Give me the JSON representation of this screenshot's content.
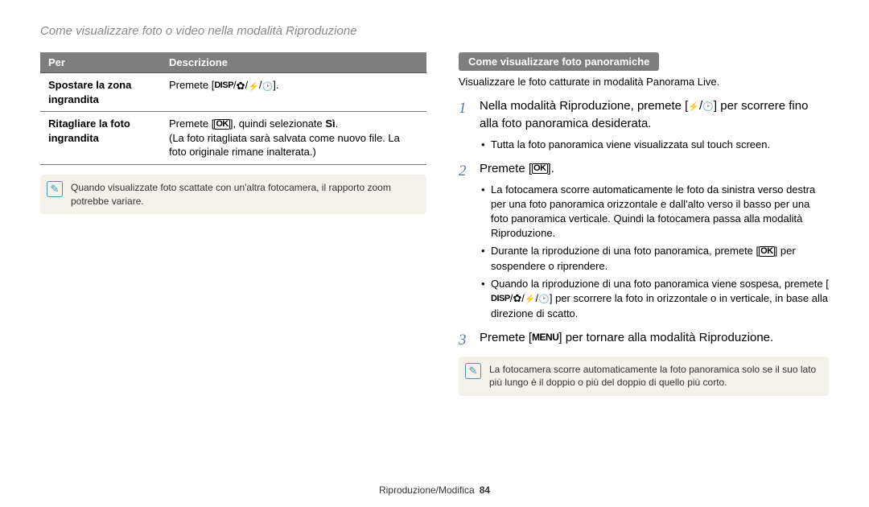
{
  "pageTitle": "Come visualizzare foto o video nella modalità Riproduzione",
  "table": {
    "headers": [
      "Per",
      "Descrizione"
    ],
    "rows": [
      {
        "label": "Spostare la zona ingrandita",
        "desc_pre": "Premete [",
        "desc_post": "]."
      },
      {
        "label": "Ritagliare la foto ingrandita",
        "desc_pre": "Premete [",
        "desc_mid": "], quindi selezionate ",
        "desc_bold": "Sì",
        "desc_note": "(La foto ritagliata sarà salvata come nuovo file. La foto originale rimane inalterata.)"
      }
    ]
  },
  "leftNote": "Quando visualizzate foto scattate con un'altra fotocamera, il rapporto zoom potrebbe variare.",
  "right": {
    "head": "Come visualizzare foto panoramiche",
    "intro": "Visualizzare le foto catturate in modalità Panorama Live.",
    "step1_a": "Nella modalità Riproduzione, premete [",
    "step1_b": "] per scorrere fino alla foto panoramica desiderata.",
    "step1_sub1": "Tutta la foto panoramica viene visualizzata sul touch screen.",
    "step2_a": "Premete [",
    "step2_b": "].",
    "step2_sub1": "La fotocamera scorre automaticamente le foto da sinistra verso destra per una foto panoramica orizzontale e dall'alto verso il basso per una foto panoramica verticale. Quindi la fotocamera passa alla modalità Riproduzione.",
    "step2_sub2_a": "Durante la riproduzione di una foto panoramica, premete [",
    "step2_sub2_b": "] per sospendere o riprendere.",
    "step2_sub3_a": "Quando la riproduzione di una foto panoramica viene sospesa, premete [",
    "step2_sub3_b": "] per scorrere la foto in orizzontale o in verticale, in base alla direzione di scatto.",
    "step3_a": "Premete [",
    "step3_b": "] per tornare alla modalità Riproduzione.",
    "note": "La fotocamera scorre automaticamente la foto panoramica solo se il suo lato più lungo è il doppio o più del doppio di quello più corto."
  },
  "footer": {
    "text": "Riproduzione/Modifica",
    "page": "84"
  },
  "icons": {
    "disp": "DISP",
    "ok": "OK",
    "menu": "MENU"
  }
}
